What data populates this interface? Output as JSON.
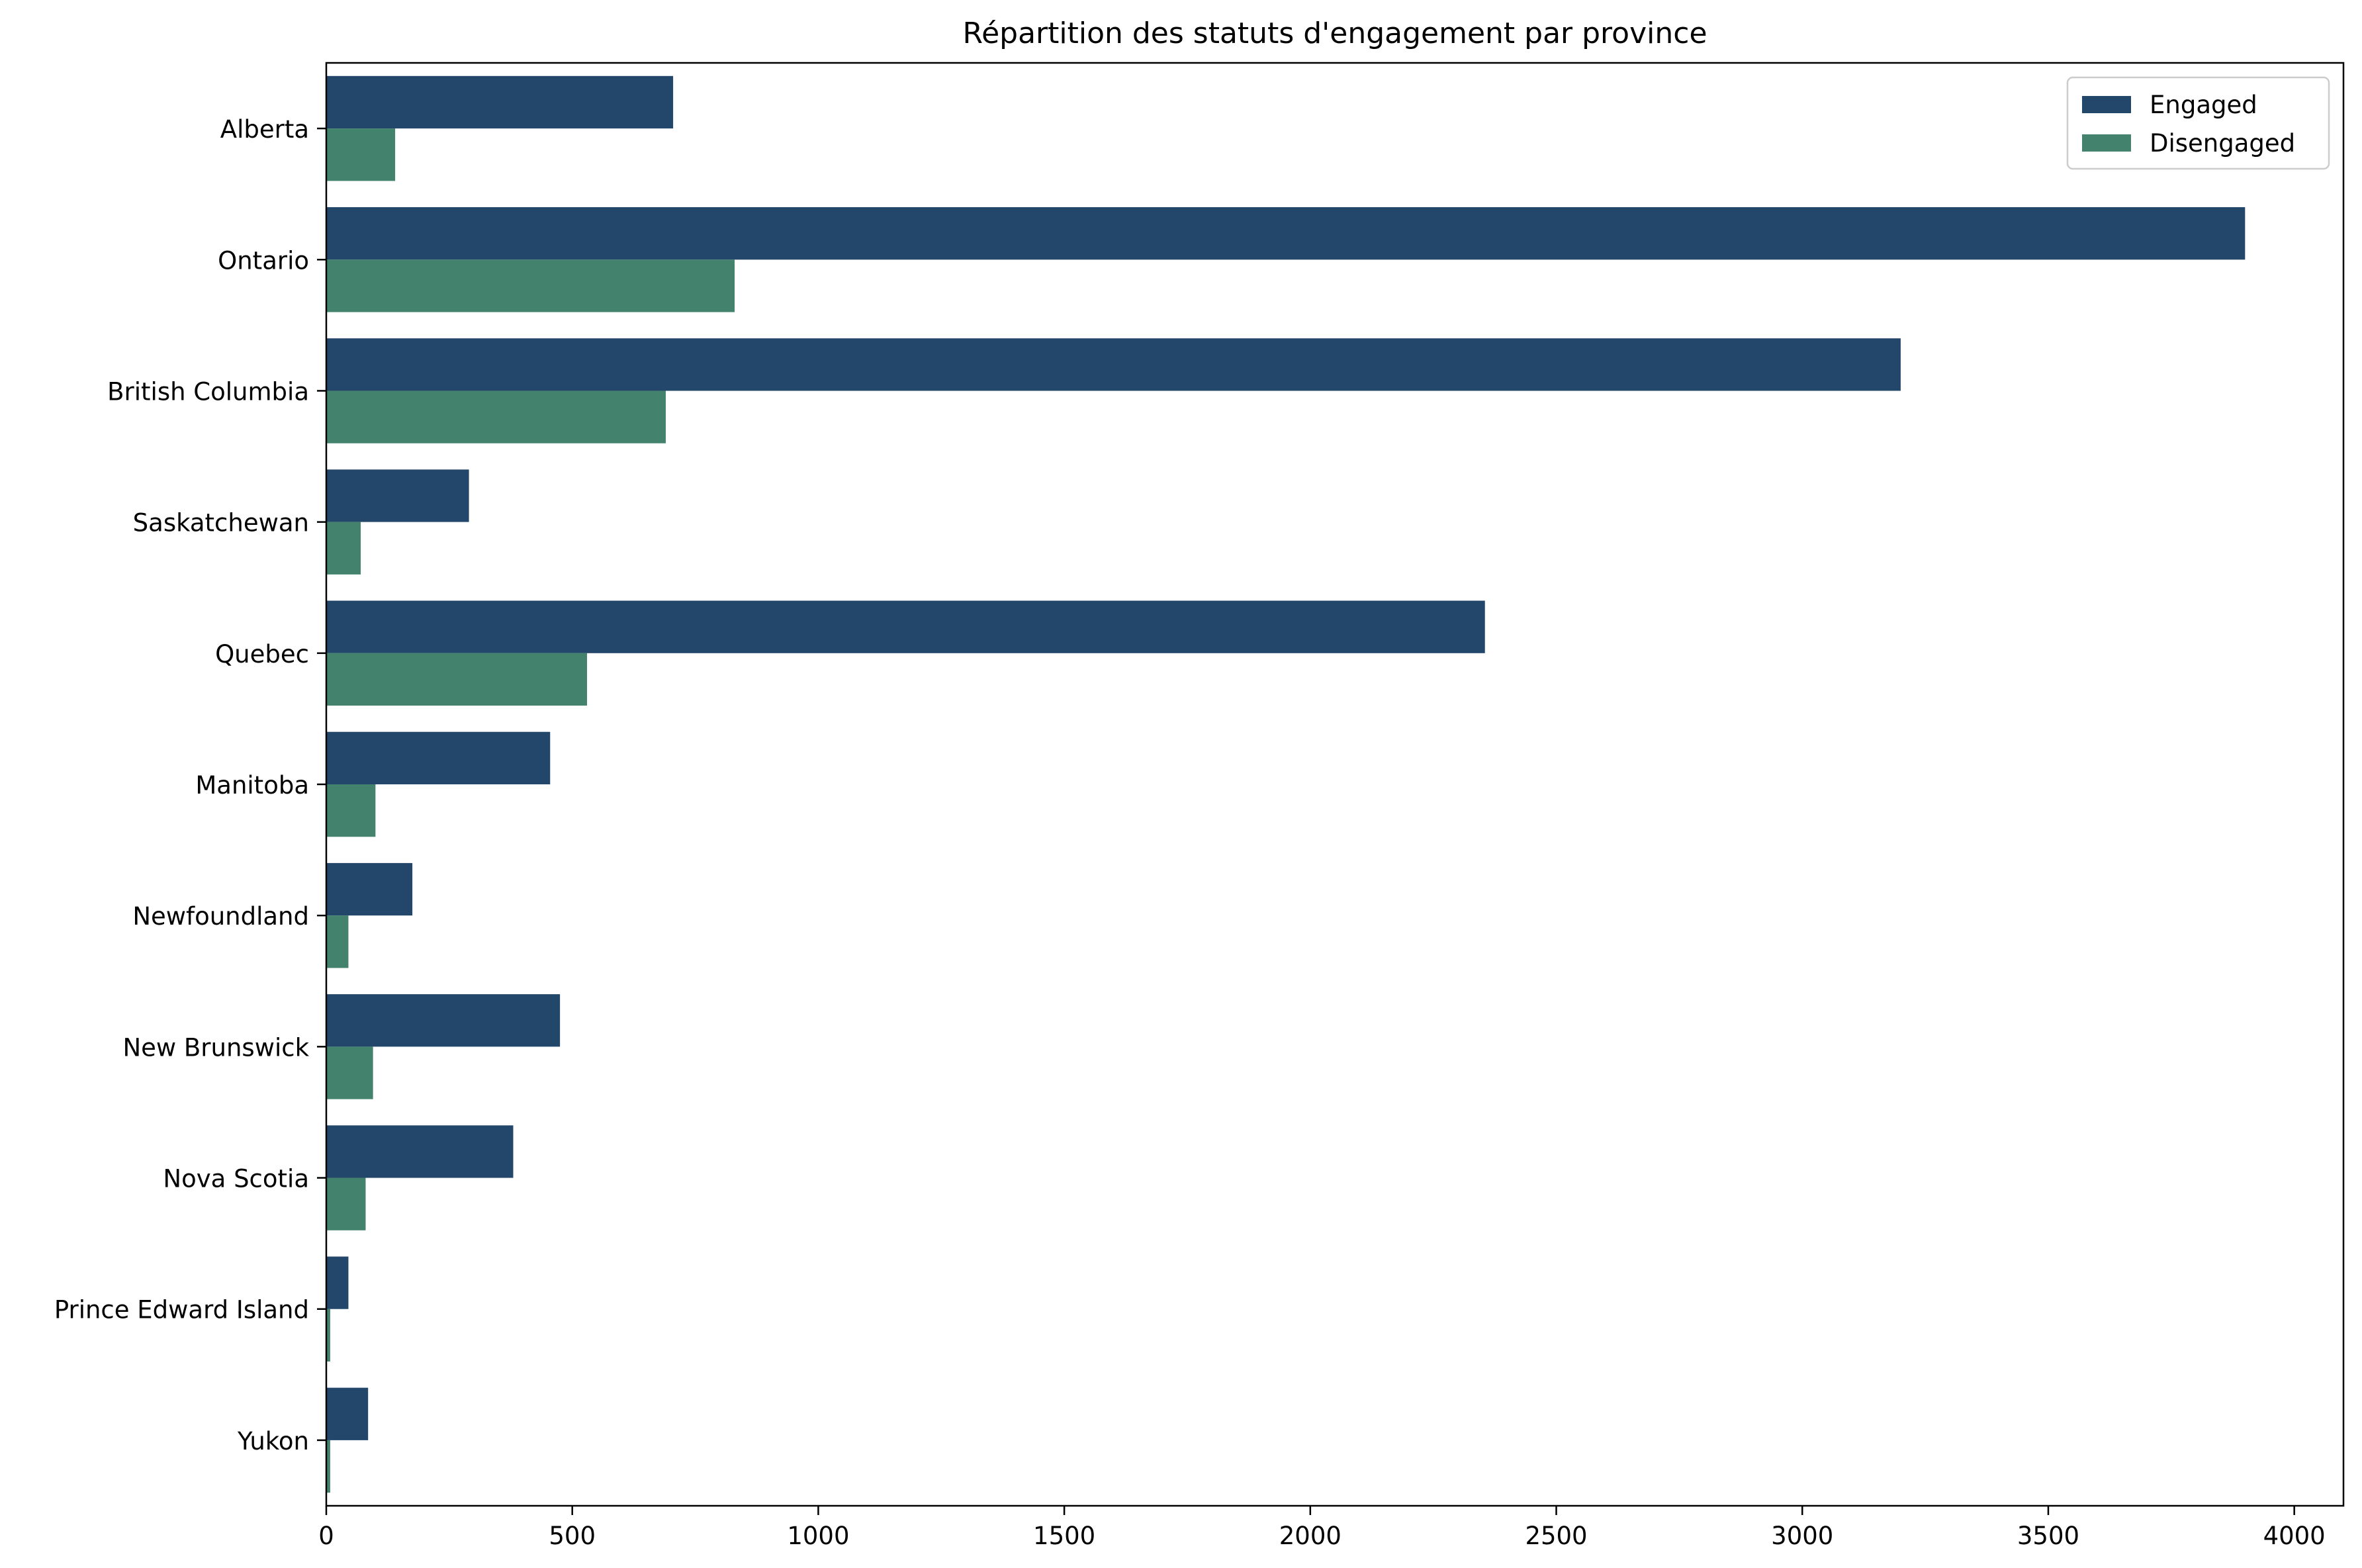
{
  "chart_data": {
    "type": "bar",
    "orientation": "horizontal",
    "title": "Répartition des statuts d'engagement par province",
    "xlabel": "",
    "ylabel": "",
    "xlim": [
      0,
      4100
    ],
    "xticks": [
      0,
      500,
      1000,
      1500,
      2000,
      2500,
      3000,
      3500,
      4000
    ],
    "xtick_labels": [
      "0",
      "500",
      "1000",
      "1500",
      "2000",
      "2500",
      "3000",
      "3500",
      "4000"
    ],
    "grid": false,
    "legend_position": "top-right",
    "categories": [
      "Alberta",
      "Ontario",
      "British Columbia",
      "Saskatchewan",
      "Quebec",
      "Manitoba",
      "Newfoundland",
      "New Brunswick",
      "Nova Scotia",
      "Prince Edward Island",
      "Yukon"
    ],
    "series": [
      {
        "name": "Engaged",
        "color": "#23476b",
        "values": [
          705,
          3900,
          3200,
          290,
          2355,
          455,
          175,
          475,
          380,
          45,
          85
        ]
      },
      {
        "name": "Disengaged",
        "color": "#43826c",
        "values": [
          140,
          830,
          690,
          70,
          530,
          100,
          45,
          95,
          80,
          8,
          8
        ]
      }
    ]
  }
}
